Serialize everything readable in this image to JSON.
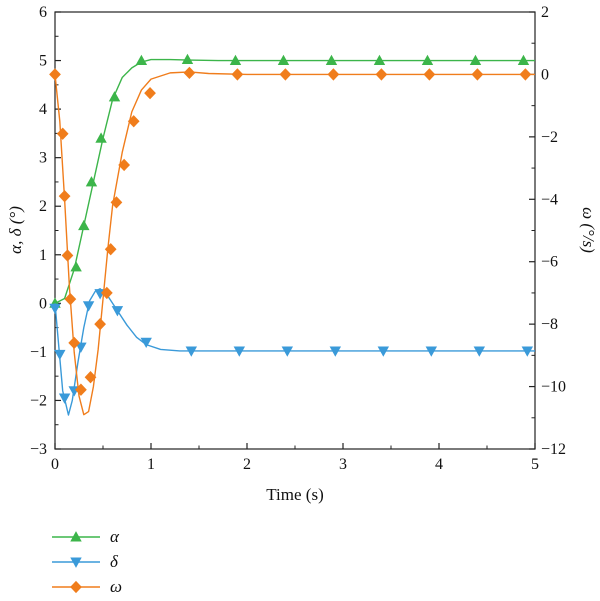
{
  "chart_data": {
    "type": "line",
    "title": "",
    "xlabel": "Time (s)",
    "ylabel_left": "α, δ (°)",
    "ylabel_right": "ω (°/s)",
    "xlim": [
      0,
      5
    ],
    "ylim_left": [
      -3,
      6
    ],
    "ylim_right": [
      -12,
      2
    ],
    "x_ticks": [
      0,
      1,
      2,
      3,
      4,
      5
    ],
    "y_left_ticks": [
      -3,
      -2,
      -1,
      0,
      1,
      2,
      3,
      4,
      5,
      6
    ],
    "y_right_ticks": [
      -12,
      -10,
      -8,
      -6,
      -4,
      -2,
      0,
      2
    ],
    "grid": false,
    "legend_position": "bottom-left",
    "series": [
      {
        "name": "α",
        "axis": "left",
        "color": "#3cb54a",
        "marker": "triangle-up",
        "curve": [
          [
            0,
            0
          ],
          [
            0.1,
            0.1
          ],
          [
            0.2,
            0.7
          ],
          [
            0.3,
            1.6
          ],
          [
            0.4,
            2.5
          ],
          [
            0.5,
            3.4
          ],
          [
            0.6,
            4.2
          ],
          [
            0.7,
            4.65
          ],
          [
            0.8,
            4.85
          ],
          [
            0.9,
            4.97
          ],
          [
            1.0,
            5.02
          ],
          [
            1.2,
            5.02
          ],
          [
            1.4,
            5.01
          ],
          [
            1.7,
            5.0
          ],
          [
            5.0,
            5.0
          ]
        ],
        "markers": [
          [
            0,
            0
          ],
          [
            0.22,
            0.75
          ],
          [
            0.3,
            1.6
          ],
          [
            0.38,
            2.5
          ],
          [
            0.48,
            3.4
          ],
          [
            0.62,
            4.25
          ],
          [
            0.9,
            5.0
          ],
          [
            1.38,
            5.02
          ],
          [
            1.88,
            5.0
          ],
          [
            2.38,
            5.0
          ],
          [
            2.88,
            5.0
          ],
          [
            3.38,
            5.0
          ],
          [
            3.88,
            5.0
          ],
          [
            4.38,
            5.0
          ],
          [
            4.88,
            5.0
          ]
        ]
      },
      {
        "name": "δ",
        "axis": "left",
        "color": "#3a9ad9",
        "marker": "triangle-down",
        "curve": [
          [
            0,
            0
          ],
          [
            0.04,
            -0.9
          ],
          [
            0.08,
            -1.8
          ],
          [
            0.14,
            -2.3
          ],
          [
            0.18,
            -2.0
          ],
          [
            0.24,
            -1.2
          ],
          [
            0.3,
            -0.5
          ],
          [
            0.36,
            0.05
          ],
          [
            0.42,
            0.25
          ],
          [
            0.47,
            0.3
          ],
          [
            0.55,
            0.15
          ],
          [
            0.65,
            -0.15
          ],
          [
            0.75,
            -0.45
          ],
          [
            0.85,
            -0.7
          ],
          [
            0.95,
            -0.85
          ],
          [
            1.1,
            -0.95
          ],
          [
            1.3,
            -0.98
          ],
          [
            1.6,
            -0.98
          ],
          [
            5.0,
            -0.98
          ]
        ],
        "markers": [
          [
            0,
            -0.1
          ],
          [
            0.05,
            -1.05
          ],
          [
            0.1,
            -1.95
          ],
          [
            0.2,
            -1.8
          ],
          [
            0.27,
            -0.9
          ],
          [
            0.35,
            -0.05
          ],
          [
            0.47,
            0.2
          ],
          [
            0.65,
            -0.15
          ],
          [
            0.95,
            -0.8
          ],
          [
            1.42,
            -0.98
          ],
          [
            1.92,
            -0.98
          ],
          [
            2.42,
            -0.98
          ],
          [
            2.92,
            -0.98
          ],
          [
            3.42,
            -0.98
          ],
          [
            3.92,
            -0.98
          ],
          [
            4.42,
            -0.98
          ],
          [
            4.92,
            -0.98
          ]
        ]
      },
      {
        "name": "ω",
        "axis": "right",
        "color": "#f07d1c",
        "marker": "diamond",
        "curve": [
          [
            0,
            0
          ],
          [
            0.05,
            -1.5
          ],
          [
            0.1,
            -4.0
          ],
          [
            0.15,
            -6.8
          ],
          [
            0.2,
            -8.9
          ],
          [
            0.25,
            -10.3
          ],
          [
            0.3,
            -10.9
          ],
          [
            0.35,
            -10.8
          ],
          [
            0.4,
            -10.0
          ],
          [
            0.45,
            -8.8
          ],
          [
            0.5,
            -7.2
          ],
          [
            0.55,
            -5.6
          ],
          [
            0.6,
            -4.2
          ],
          [
            0.7,
            -2.5
          ],
          [
            0.8,
            -1.2
          ],
          [
            0.9,
            -0.5
          ],
          [
            1.0,
            -0.15
          ],
          [
            1.2,
            0.05
          ],
          [
            1.4,
            0.08
          ],
          [
            1.6,
            0.03
          ],
          [
            2.0,
            0
          ],
          [
            5.0,
            0
          ]
        ],
        "markers": [
          [
            0,
            0
          ],
          [
            0.08,
            -1.9
          ],
          [
            0.1,
            -3.9
          ],
          [
            0.13,
            -5.8
          ],
          [
            0.16,
            -7.2
          ],
          [
            0.2,
            -8.6
          ],
          [
            0.27,
            -10.1
          ],
          [
            0.37,
            -9.7
          ],
          [
            0.47,
            -8.0
          ],
          [
            0.54,
            -7.0
          ],
          [
            0.58,
            -5.6
          ],
          [
            0.64,
            -4.1
          ],
          [
            0.72,
            -2.9
          ],
          [
            0.82,
            -1.5
          ],
          [
            0.99,
            -0.6
          ],
          [
            1.4,
            0.05
          ],
          [
            1.9,
            0
          ],
          [
            2.4,
            0
          ],
          [
            2.9,
            0
          ],
          [
            3.4,
            0
          ],
          [
            3.9,
            0
          ],
          [
            4.4,
            0
          ],
          [
            4.9,
            0
          ]
        ]
      }
    ]
  }
}
